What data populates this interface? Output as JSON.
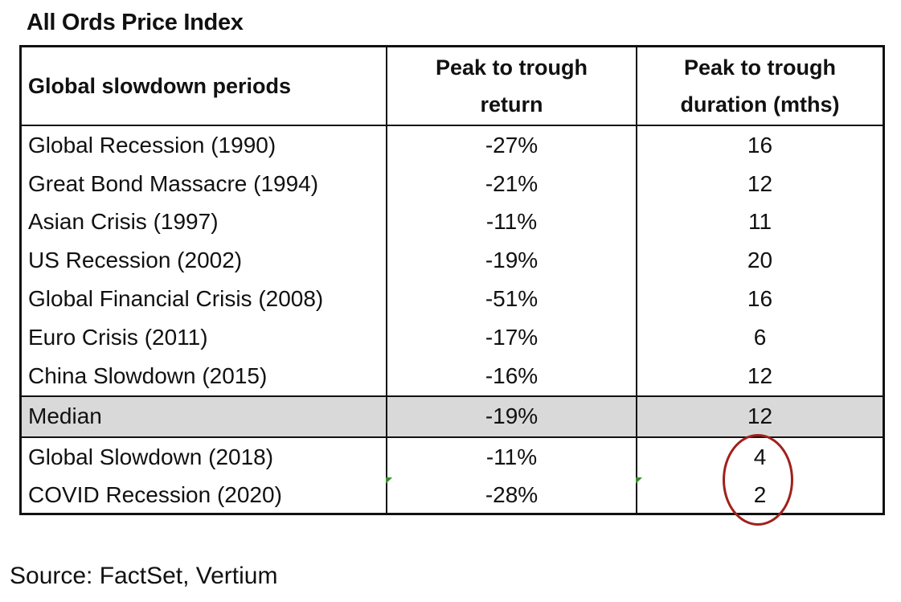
{
  "chart_data": {
    "type": "table",
    "title": "All Ords Price Index",
    "columns": [
      "Global slowdown periods",
      "Peak to trough return",
      "Peak to trough duration (mths)"
    ],
    "rows": [
      [
        "Global Recession (1990)",
        "-27%",
        "16"
      ],
      [
        "Great Bond Massacre (1994)",
        "-21%",
        "12"
      ],
      [
        "Asian Crisis (1997)",
        "-11%",
        "11"
      ],
      [
        "US Recession (2002)",
        "-19%",
        "20"
      ],
      [
        "Global Financial Crisis (2008)",
        "-51%",
        "16"
      ],
      [
        "Euro Crisis (2011)",
        "-17%",
        "6"
      ],
      [
        "China Slowdown (2015)",
        "-16%",
        "12"
      ]
    ],
    "median": [
      "Median",
      "-19%",
      "12"
    ],
    "recent_rows": [
      [
        "Global Slowdown (2018)",
        "-11%",
        "4"
      ],
      [
        "COVID Recession (2020)",
        "-28%",
        "2"
      ]
    ],
    "source": "Source: FactSet, Vertium",
    "colors": {
      "median_fill": "#d9d9d9",
      "highlight_circle": "#a0201c",
      "cell_marker": "#3a8a2e"
    }
  }
}
